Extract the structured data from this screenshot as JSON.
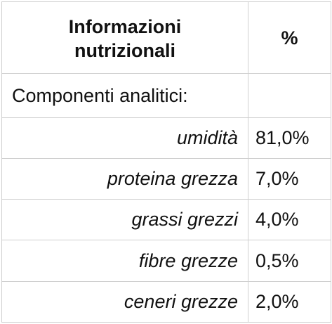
{
  "table": {
    "header": {
      "col1_line1": "Informazioni",
      "col1_line2": "nutrizionali",
      "col2": "%"
    },
    "section_label": "Componenti analitici:",
    "rows": [
      {
        "name": "umidità",
        "value": "81,0%"
      },
      {
        "name": "proteina grezza",
        "value": "7,0%"
      },
      {
        "name": "grassi grezzi",
        "value": "4,0%"
      },
      {
        "name": "fibre grezze",
        "value": "0,5%"
      },
      {
        "name": "ceneri grezze",
        "value": "2,0%"
      }
    ]
  }
}
